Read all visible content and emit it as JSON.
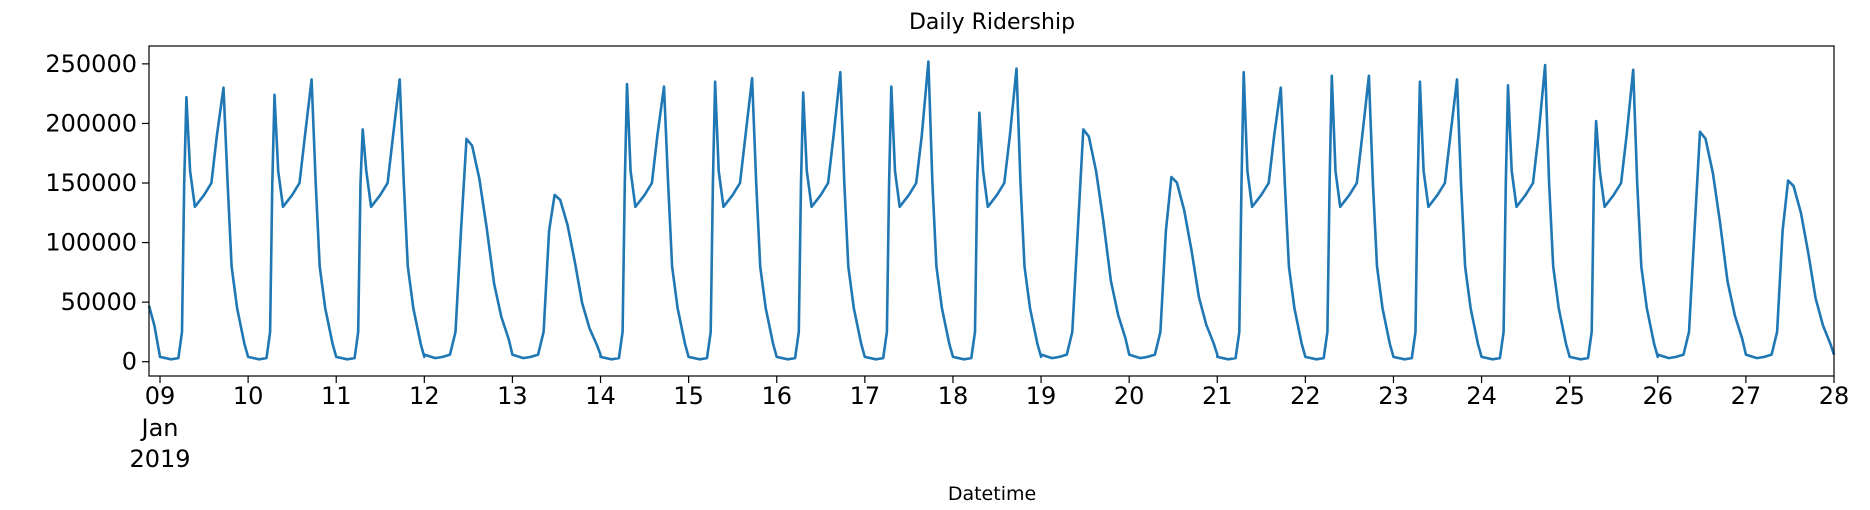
{
  "chart_data": {
    "type": "line",
    "title": "Daily Ridership",
    "xlabel": "Datetime",
    "ylabel": "",
    "xlim": [
      "2019-01-08 21:00",
      "2019-01-28 00:00"
    ],
    "ylim": [
      -12000,
      265000
    ],
    "grid": false,
    "x_tick_labels": [
      "09",
      "10",
      "11",
      "12",
      "13",
      "14",
      "15",
      "16",
      "17",
      "18",
      "19",
      "20",
      "21",
      "22",
      "23",
      "24",
      "25",
      "26",
      "27",
      "28"
    ],
    "x_tick_values": [
      "2019-01-09",
      "2019-01-10",
      "2019-01-11",
      "2019-01-12",
      "2019-01-13",
      "2019-01-14",
      "2019-01-15",
      "2019-01-16",
      "2019-01-17",
      "2019-01-18",
      "2019-01-19",
      "2019-01-20",
      "2019-01-21",
      "2019-01-22",
      "2019-01-23",
      "2019-01-24",
      "2019-01-25",
      "2019-01-26",
      "2019-01-27",
      "2019-01-28"
    ],
    "x_tick_sublabels": [
      "Jan",
      "2019"
    ],
    "y_ticks": [
      0,
      50000,
      100000,
      150000,
      200000,
      250000
    ],
    "y_tick_labels": [
      "0",
      "50000",
      "100000",
      "150000",
      "200000",
      "250000"
    ],
    "series_color": "#1f77b4",
    "weekday_peaks": {
      "2019-01-09": [
        222000,
        230000
      ],
      "2019-01-10": [
        224000,
        237000
      ],
      "2019-01-11": [
        195000,
        237000
      ],
      "2019-01-14": [
        233000,
        231000
      ],
      "2019-01-15": [
        235000,
        238000
      ],
      "2019-01-16": [
        226000,
        243000
      ],
      "2019-01-17": [
        231000,
        252000
      ],
      "2019-01-18": [
        209000,
        246000
      ],
      "2019-01-21": [
        243000,
        230000
      ],
      "2019-01-22": [
        240000,
        240000
      ],
      "2019-01-23": [
        235000,
        237000
      ],
      "2019-01-24": [
        232000,
        249000
      ],
      "2019-01-25": [
        202000,
        245000
      ]
    },
    "weekend_peaks": {
      "2019-01-12": 187000,
      "2019-01-13": 140000,
      "2019-01-19": 195000,
      "2019-01-20": 155000,
      "2019-01-26": 193000,
      "2019-01-27": 152000
    },
    "start_value": 47000
  }
}
